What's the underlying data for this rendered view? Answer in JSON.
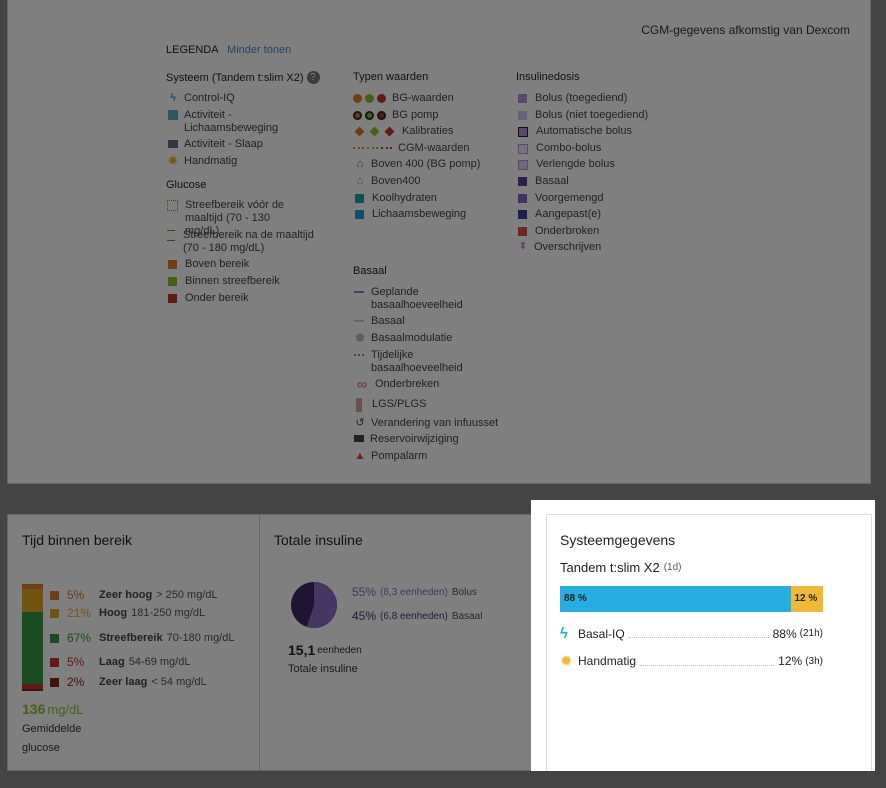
{
  "legend": {
    "cgm_source": "CGM-gegevens afkomstig van Dexcom",
    "title": "LEGENDA",
    "toggle": "Minder tonen",
    "system": {
      "heading": "Systeem (Tandem t:slim X2)",
      "help": "?",
      "items": [
        "Control-IQ",
        "Activiteit - Lichaamsbeweging",
        "Activiteit - Slaap",
        "Handmatig"
      ]
    },
    "glucose": {
      "heading": "Glucose",
      "items": [
        "Streefbereik vóór de maaltijd (70 - 130 mg/dL)",
        "Streefbereik na de maaltijd (70 - 180 mg/dL)",
        "Boven bereik",
        "Binnen streefbereik",
        "Onder bereik"
      ]
    },
    "types": {
      "heading": "Typen waarden",
      "items": [
        "BG-waarden",
        "BG pomp",
        "Kalibraties",
        "CGM-waarden",
        "Boven 400 (BG pomp)",
        "Boven400",
        "Koolhydraten",
        "Lichaamsbeweging"
      ]
    },
    "basal": {
      "heading": "Basaal",
      "items": [
        "Geplande basaalhoeveelheid",
        "Basaal",
        "Basaalmodulatie",
        "Tijdelijke basaalhoeveelheid",
        "Onderbreken",
        "LGS/PLGS",
        "Verandering van infuusset",
        "Reservoirwijziging",
        "Pompalarm"
      ]
    },
    "insulin": {
      "heading": "Insulinedosis",
      "items": [
        "Bolus (toegediend)",
        "Bolus (niet toegediend)",
        "Automatische bolus",
        "Combo-bolus",
        "Verlengde bolus",
        "Basaal",
        "Voorgemengd",
        "Aangepast(e)",
        "Onderbroken",
        "Overschrijven"
      ]
    }
  },
  "tir": {
    "title": "Tijd binnen bereik",
    "rows": [
      {
        "pct": "5%",
        "label": "Zeer hoog",
        "range": "> 250 mg/dL",
        "color": "#e07b2a"
      },
      {
        "pct": "21%",
        "label": "Hoog",
        "range": "181-250 mg/dL",
        "color": "#e6a81f"
      },
      {
        "pct": "67%",
        "label": "Streefbereik",
        "range": "70-180 mg/dL",
        "color": "#2e9b3f"
      },
      {
        "pct": "5%",
        "label": "Laag",
        "range": "54-69 mg/dL",
        "color": "#c8332b"
      },
      {
        "pct": "2%",
        "label": "Zeer laag",
        "range": "< 54 mg/dL",
        "color": "#8b2016"
      }
    ],
    "avg_value": "136",
    "avg_unit": "mg/dL",
    "avg_label_1": "Gemiddelde",
    "avg_label_2": "glucose"
  },
  "insulin_total": {
    "title": "Totale insuline",
    "bolus_pct": "55%",
    "bolus_units": "(8,3 eenheden)",
    "bolus_label": "Bolus",
    "basal_pct": "45%",
    "basal_units": "(6,8 eenheden)",
    "basal_label": "Basaal",
    "total_value": "15,1",
    "total_unit": "eenheden",
    "total_label": "Totale insuline"
  },
  "system_data": {
    "title": "Systeemgegevens",
    "device": "Tandem t:slim X2",
    "period": "(1d)",
    "bar_auto_label": "88 %",
    "bar_manual_label": "12 %",
    "bar_auto_fraction": 0.88,
    "rows": [
      {
        "label": "Basal-IQ",
        "pct": "88%",
        "dur": "(21h)"
      },
      {
        "label": "Handmatig",
        "pct": "12%",
        "dur": "(3h)"
      }
    ],
    "colors": {
      "auto": "#26aee0",
      "manual": "#f1b833"
    }
  }
}
